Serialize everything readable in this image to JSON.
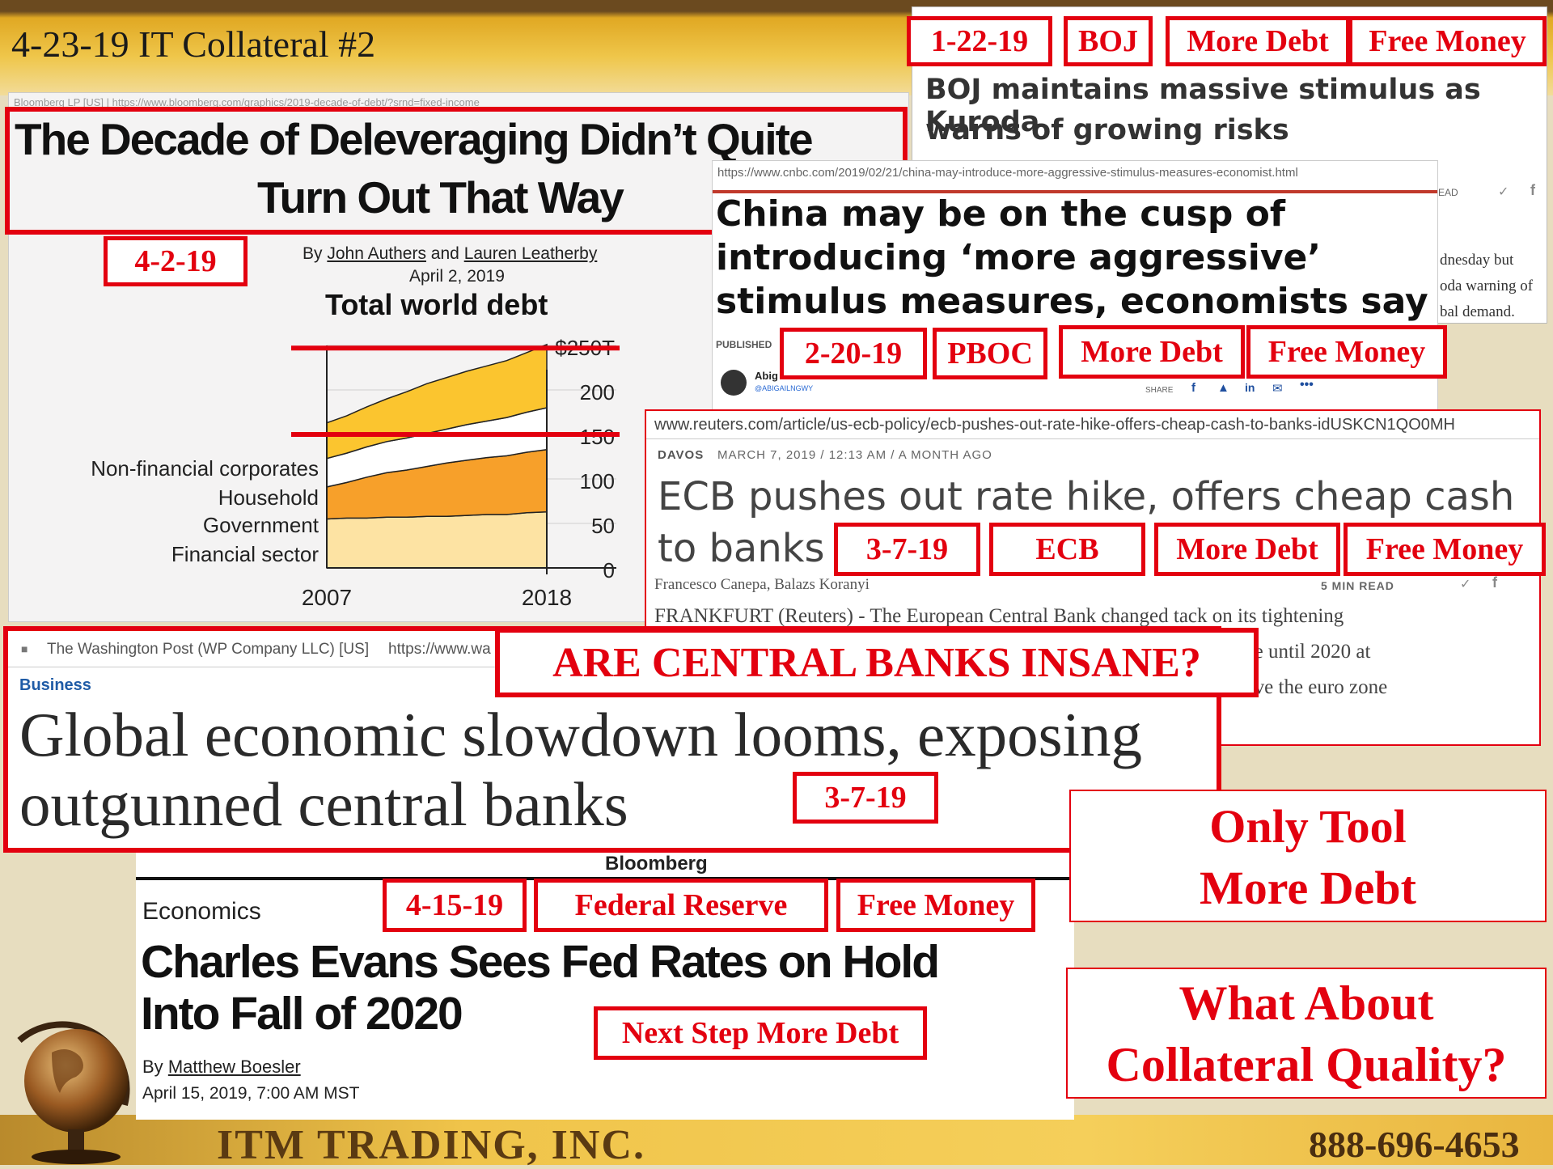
{
  "slide": {
    "title": "4-23-19 IT Collateral #2",
    "footer_company": "ITM TRADING, INC.",
    "footer_phone": "888-696-4653",
    "colors": {
      "accent_red": "#e3000f",
      "gold": "#e0a823",
      "brown": "#6b4a1f",
      "background": "#e7ddbf"
    }
  },
  "boj": {
    "tags": [
      "1-22-19",
      "BOJ",
      "More Debt",
      "Free Money"
    ],
    "headline_line1": "BOJ maintains massive stimulus as Kuroda",
    "headline_line2": "warns of growing risks",
    "body_frag1": "dnesday but",
    "body_frag2": "oda warning of",
    "body_frag3": "bal demand.",
    "read_label": "EAD"
  },
  "bloomberg_debt": {
    "source_bar": "Bloomberg LP [US] | https://www.bloomberg.com/graphics/2019-decade-of-debt/?srnd=fixed-income",
    "headline_line1": "The Decade of Deleveraging Didn’t Quite",
    "headline_line2": "Turn Out That Way",
    "date_tag": "4-2-19",
    "byline_by": "By",
    "byline_author1": "John Authers",
    "byline_and": "and",
    "byline_author2": "Lauren Leatherby",
    "date": "April 2, 2019"
  },
  "chart_data": {
    "type": "area",
    "title": "Total world debt",
    "x": [
      2007,
      2008,
      2009,
      2010,
      2011,
      2012,
      2013,
      2014,
      2015,
      2016,
      2017,
      2018
    ],
    "xticks": [
      "2007",
      "2018"
    ],
    "yticks": [
      "$250T",
      "200",
      "150",
      "100",
      "50",
      "0"
    ],
    "ylim": [
      0,
      250
    ],
    "series": [
      {
        "name": "Financial sector",
        "values": [
          55,
          56,
          56,
          57,
          57,
          58,
          58,
          59,
          60,
          60,
          62,
          63
        ],
        "color": "#fde3a3"
      },
      {
        "name": "Government",
        "values": [
          36,
          40,
          46,
          50,
          53,
          56,
          60,
          62,
          64,
          66,
          68,
          70
        ],
        "color": "#f7a02a"
      },
      {
        "name": "Household",
        "values": [
          32,
          33,
          34,
          35,
          36,
          37,
          38,
          40,
          41,
          43,
          45,
          47
        ],
        "color": "#ffffff"
      },
      {
        "name": "Non-financial corporates",
        "values": [
          40,
          42,
          45,
          48,
          52,
          56,
          58,
          60,
          62,
          64,
          67,
          71
        ],
        "color": "#fbc52f"
      }
    ],
    "legend_placement": "left"
  },
  "cnbc": {
    "url": "https://www.cnbc.com/2019/02/21/china-may-introduce-more-aggressive-stimulus-measures-economist.html",
    "headline_line1": "China may be on the cusp of",
    "headline_line2": "introducing ‘more aggressive’",
    "headline_line3": "stimulus measures, economists say",
    "published_label": "PUBLISHED",
    "author_short": "Abig",
    "author_handle": "@ABIGAILNGWY",
    "share_label": "SHARE",
    "tags": [
      "2-20-19",
      "PBOC",
      "More Debt",
      "Free Money"
    ]
  },
  "reuters": {
    "url": "www.reuters.com/article/us-ecb-policy/ecb-pushes-out-rate-hike-offers-cheap-cash-to-banks-idUSKCN1QO0MH",
    "dateline_place": "DAVOS",
    "dateline": "MARCH 7, 2019 / 12:13 AM / A MONTH AGO",
    "headline_line1": "ECB pushes out rate hike, offers cheap cash",
    "headline_line2": "to banks",
    "authors": "Francesco Canepa, Balazs Koranyi",
    "read_time": "5 MIN READ",
    "body_line1": "FRANKFURT (Reuters) - The European Central Bank changed tack on its tightening",
    "body_line2": "rate hike until 2020 at",
    "body_line3": "elp revive the euro zone",
    "tags": [
      "3-7-19",
      "ECB",
      "More Debt",
      "Free Money"
    ]
  },
  "wapo": {
    "source_bar": "The Washington Post (WP Company LLC) [US]",
    "source_url": "https://www.wa",
    "section": "Business",
    "headline_line1": "Global economic slowdown looms, exposing",
    "headline_line2": "outgunned central banks",
    "date_tag": "3-7-19",
    "banner": "ARE CENTRAL BANKS INSANE?"
  },
  "fed": {
    "brand": "Bloomberg",
    "section": "Economics",
    "headline_line1": "Charles Evans Sees Fed Rates on Hold",
    "headline_line2": "Into Fall of 2020",
    "byline_by": "By",
    "author": "Matthew Boesler",
    "date": "April 15, 2019, 7:00 AM MST",
    "tags": [
      "4-15-19",
      "Federal Reserve",
      "Free Money"
    ],
    "next_step": "Next Step More Debt"
  },
  "callouts": {
    "only_tool_line1": "Only Tool",
    "only_tool_line2": "More Debt",
    "collateral_line1": "What About",
    "collateral_line2": "Collateral Quality?"
  }
}
